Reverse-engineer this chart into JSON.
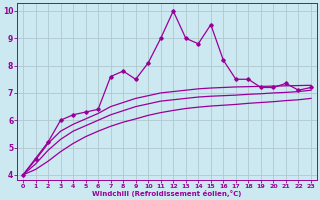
{
  "x": [
    0,
    1,
    2,
    3,
    4,
    5,
    6,
    7,
    8,
    9,
    10,
    11,
    12,
    13,
    14,
    15,
    16,
    17,
    18,
    19,
    20,
    21,
    22,
    23
  ],
  "line_jagged": [
    4.0,
    4.6,
    5.2,
    6.0,
    6.2,
    6.3,
    6.4,
    7.6,
    7.8,
    7.5,
    8.1,
    9.0,
    10.0,
    9.0,
    8.8,
    9.5,
    8.2,
    7.5,
    7.5,
    7.2,
    7.2,
    7.35,
    7.1,
    7.2
  ],
  "smooth1": [
    4.0,
    4.55,
    5.15,
    5.6,
    5.85,
    6.05,
    6.25,
    6.5,
    6.65,
    6.8,
    6.9,
    7.0,
    7.05,
    7.1,
    7.15,
    7.18,
    7.2,
    7.22,
    7.23,
    7.24,
    7.25,
    7.26,
    7.27,
    7.28
  ],
  "smooth2": [
    4.0,
    4.4,
    4.9,
    5.3,
    5.6,
    5.8,
    6.0,
    6.2,
    6.35,
    6.5,
    6.6,
    6.7,
    6.75,
    6.8,
    6.85,
    6.88,
    6.9,
    6.92,
    6.95,
    6.97,
    7.0,
    7.02,
    7.05,
    7.1
  ],
  "smooth3": [
    4.0,
    4.2,
    4.5,
    4.85,
    5.15,
    5.4,
    5.6,
    5.78,
    5.93,
    6.05,
    6.18,
    6.28,
    6.36,
    6.43,
    6.48,
    6.52,
    6.55,
    6.58,
    6.62,
    6.65,
    6.68,
    6.72,
    6.75,
    6.8
  ],
  "line_color": "#990099",
  "bg_color": "#cce8f0",
  "grid_color": "#b0c8d0",
  "xlabel": "Windchill (Refroidissement éolien,°C)",
  "ylim": [
    3.8,
    10.3
  ],
  "xlim": [
    -0.5,
    23.5
  ],
  "yticks": [
    4,
    5,
    6,
    7,
    8,
    9,
    10
  ],
  "xticks": [
    0,
    1,
    2,
    3,
    4,
    5,
    6,
    7,
    8,
    9,
    10,
    11,
    12,
    13,
    14,
    15,
    16,
    17,
    18,
    19,
    20,
    21,
    22,
    23
  ]
}
